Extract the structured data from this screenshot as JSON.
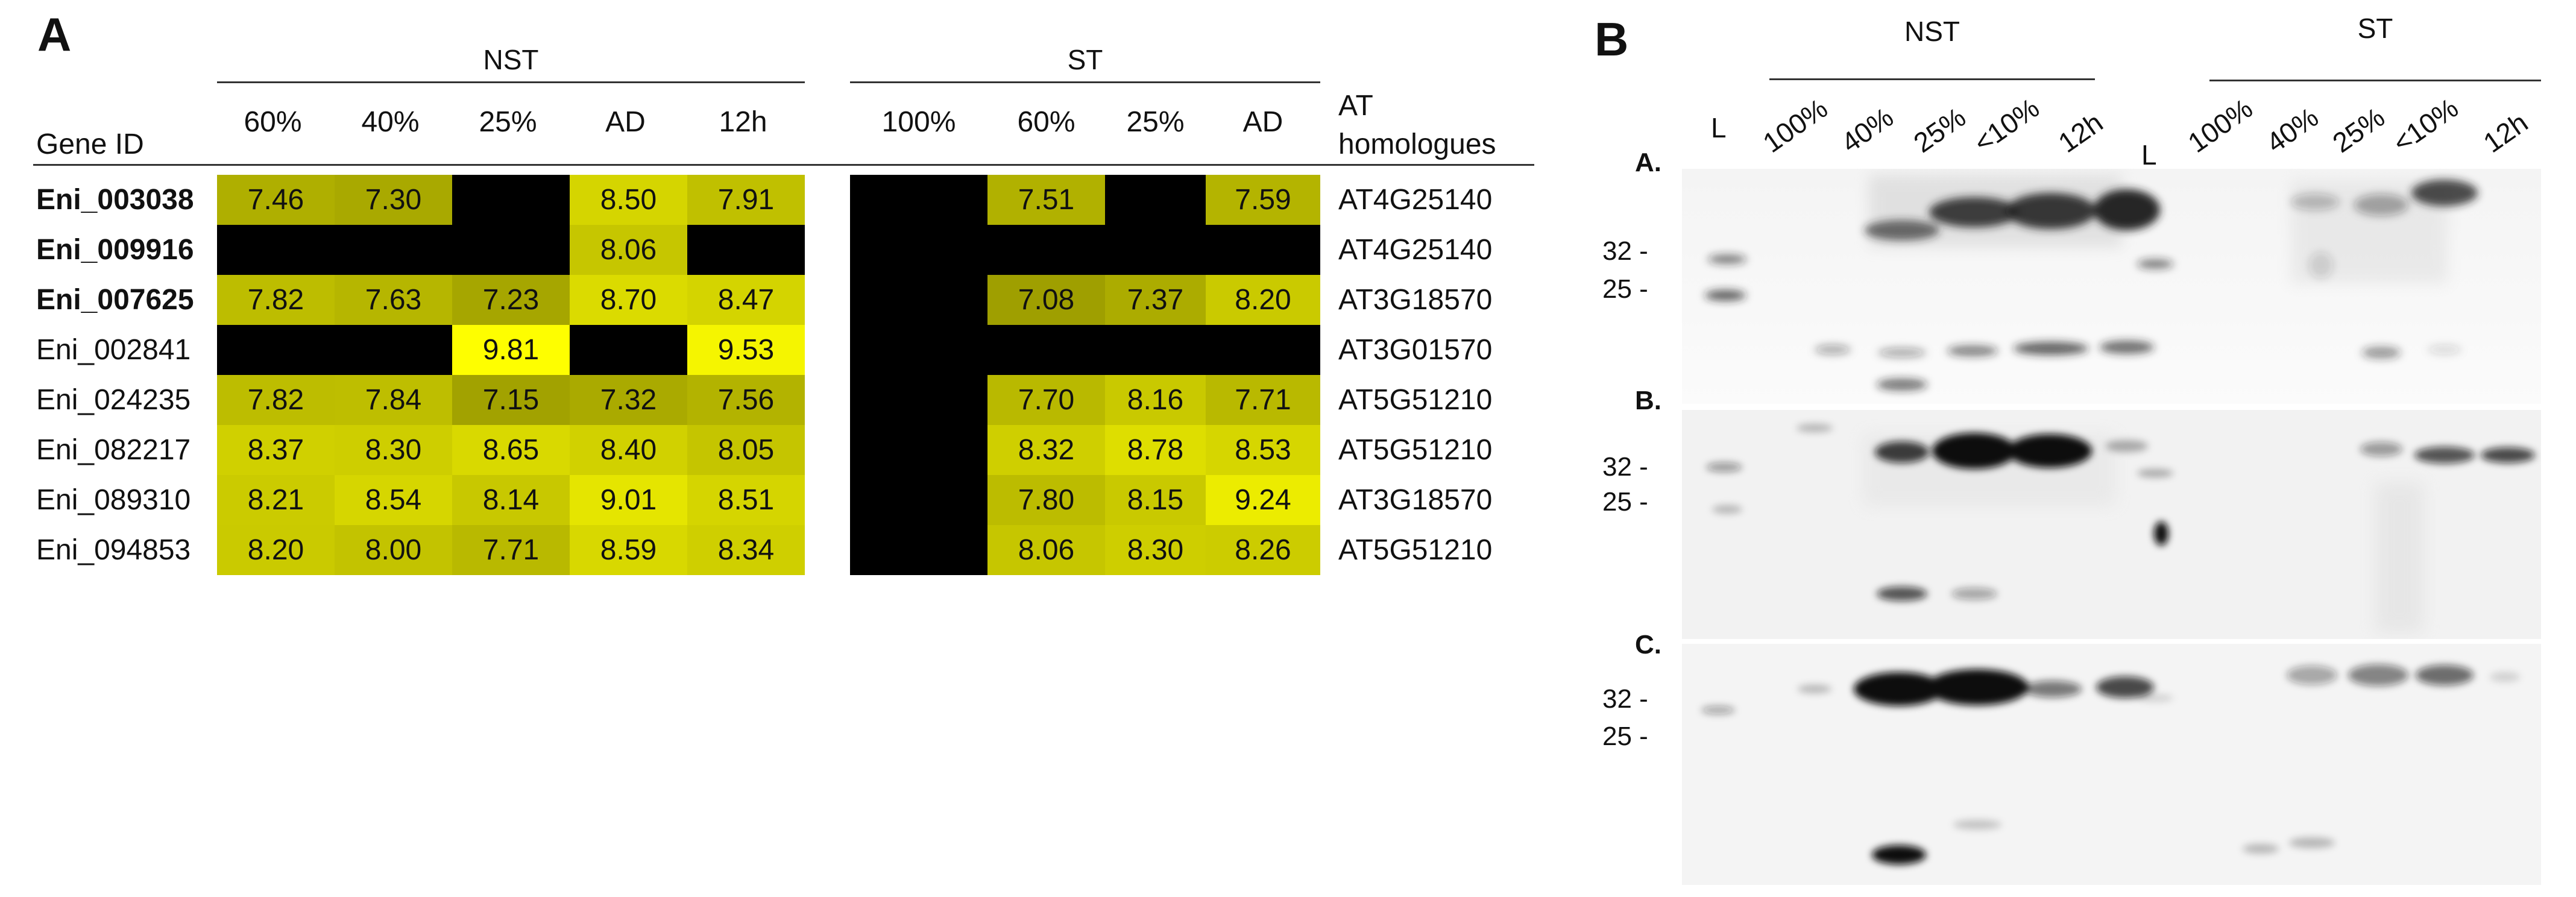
{
  "panelA": {
    "letter": "A",
    "groups": {
      "nst": "NST",
      "st": "ST"
    },
    "gene_id_header": "Gene ID",
    "at_header_line1": "AT",
    "at_header_line2": "homologues",
    "nst_columns": [
      "60%",
      "40%",
      "25%",
      "AD",
      "12h"
    ],
    "st_columns": [
      "100%",
      "60%",
      "25%",
      "AD"
    ],
    "rows": [
      {
        "gene": "Eni_003038",
        "bold": true,
        "nst": [
          "7.46",
          "7.30",
          "",
          "8.50",
          "7.91"
        ],
        "st": [
          "",
          "7.51",
          "",
          "7.59"
        ],
        "at": "AT4G25140"
      },
      {
        "gene": "Eni_009916",
        "bold": true,
        "nst": [
          "",
          "",
          "",
          "8.06",
          ""
        ],
        "st": [
          "",
          "",
          "",
          ""
        ],
        "at": "AT4G25140"
      },
      {
        "gene": "Eni_007625",
        "bold": true,
        "nst": [
          "7.82",
          "7.63",
          "7.23",
          "8.70",
          "8.47"
        ],
        "st": [
          "",
          "7.08",
          "7.37",
          "8.20"
        ],
        "at": "AT3G18570"
      },
      {
        "gene": "Eni_002841",
        "bold": false,
        "nst": [
          "",
          "",
          "9.81",
          "",
          "9.53"
        ],
        "st": [
          "",
          "",
          "",
          ""
        ],
        "at": "AT3G01570"
      },
      {
        "gene": "Eni_024235",
        "bold": false,
        "nst": [
          "7.82",
          "7.84",
          "7.15",
          "7.32",
          "7.56"
        ],
        "st": [
          "",
          "7.70",
          "8.16",
          "7.71"
        ],
        "at": "AT5G51210"
      },
      {
        "gene": "Eni_082217",
        "bold": false,
        "nst": [
          "8.37",
          "8.30",
          "8.65",
          "8.40",
          "8.05"
        ],
        "st": [
          "",
          "8.32",
          "8.78",
          "8.53"
        ],
        "at": "AT5G51210"
      },
      {
        "gene": "Eni_089310",
        "bold": false,
        "nst": [
          "8.21",
          "8.54",
          "8.14",
          "9.01",
          "8.51"
        ],
        "st": [
          "",
          "7.80",
          "8.15",
          "9.24"
        ],
        "at": "AT3G18570"
      },
      {
        "gene": "Eni_094853",
        "bold": false,
        "nst": [
          "8.20",
          "8.00",
          "7.71",
          "8.59",
          "8.34"
        ],
        "st": [
          "",
          "8.06",
          "8.30",
          "8.26"
        ],
        "at": "AT5G51210"
      }
    ],
    "colors": {
      "empty": "#000000",
      "low": "#9a9a00",
      "high": "#ffff00"
    }
  },
  "panelB": {
    "letter": "B",
    "groups": {
      "nst": "NST",
      "st": "ST"
    },
    "lane_labels_nst": [
      "L",
      "100%",
      "40%",
      "25%",
      "<10%",
      "12h"
    ],
    "lane_labels_st": [
      "L",
      "100%",
      "40%",
      "25%",
      "<10%",
      "12h"
    ],
    "blots": [
      {
        "label": "A.",
        "markers": [
          "32 -",
          "25 -"
        ]
      },
      {
        "label": "B.",
        "markers": [
          "32 -",
          "25 -"
        ]
      },
      {
        "label": "C.",
        "markers": [
          "32 -",
          "25 -"
        ]
      }
    ]
  }
}
